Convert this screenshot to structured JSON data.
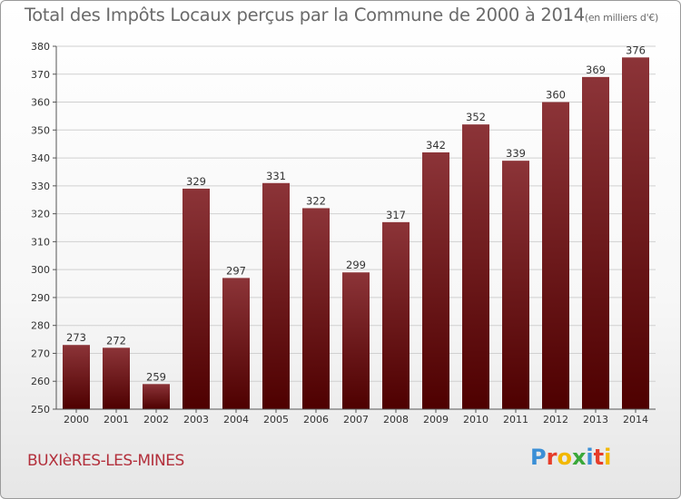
{
  "page": {
    "title": "Total des Impôts Locaux perçus par la Commune de 2000 à 2014",
    "title_unit": "(en milliers d'€)",
    "commune": "BUXIèRES-LES-MINES",
    "logo": {
      "letters": [
        "P",
        "r",
        "o",
        "x",
        "i",
        "t",
        "i"
      ],
      "colors": [
        "#3b8fd6",
        "#e63d2a",
        "#f2b800",
        "#3aa83a",
        "#3b8fd6",
        "#e63d2a",
        "#f2b800"
      ]
    }
  },
  "colors": {
    "bar_top": "#8c3438",
    "bar_bottom": "#4e0000",
    "grid": "#d0d0d0",
    "axis": "#555555",
    "label": "#333333"
  },
  "chart_data": {
    "type": "bar",
    "categories": [
      "2000",
      "2001",
      "2002",
      "2003",
      "2004",
      "2005",
      "2006",
      "2007",
      "2008",
      "2009",
      "2010",
      "2011",
      "2012",
      "2013",
      "2014"
    ],
    "values": [
      273,
      272,
      259,
      329,
      297,
      331,
      322,
      299,
      317,
      342,
      352,
      339,
      360,
      369,
      376
    ],
    "ylim": [
      250,
      380
    ],
    "yticks": [
      250,
      260,
      270,
      280,
      290,
      300,
      310,
      320,
      330,
      340,
      350,
      360,
      370,
      380
    ],
    "grid": true,
    "data_labels": true
  }
}
